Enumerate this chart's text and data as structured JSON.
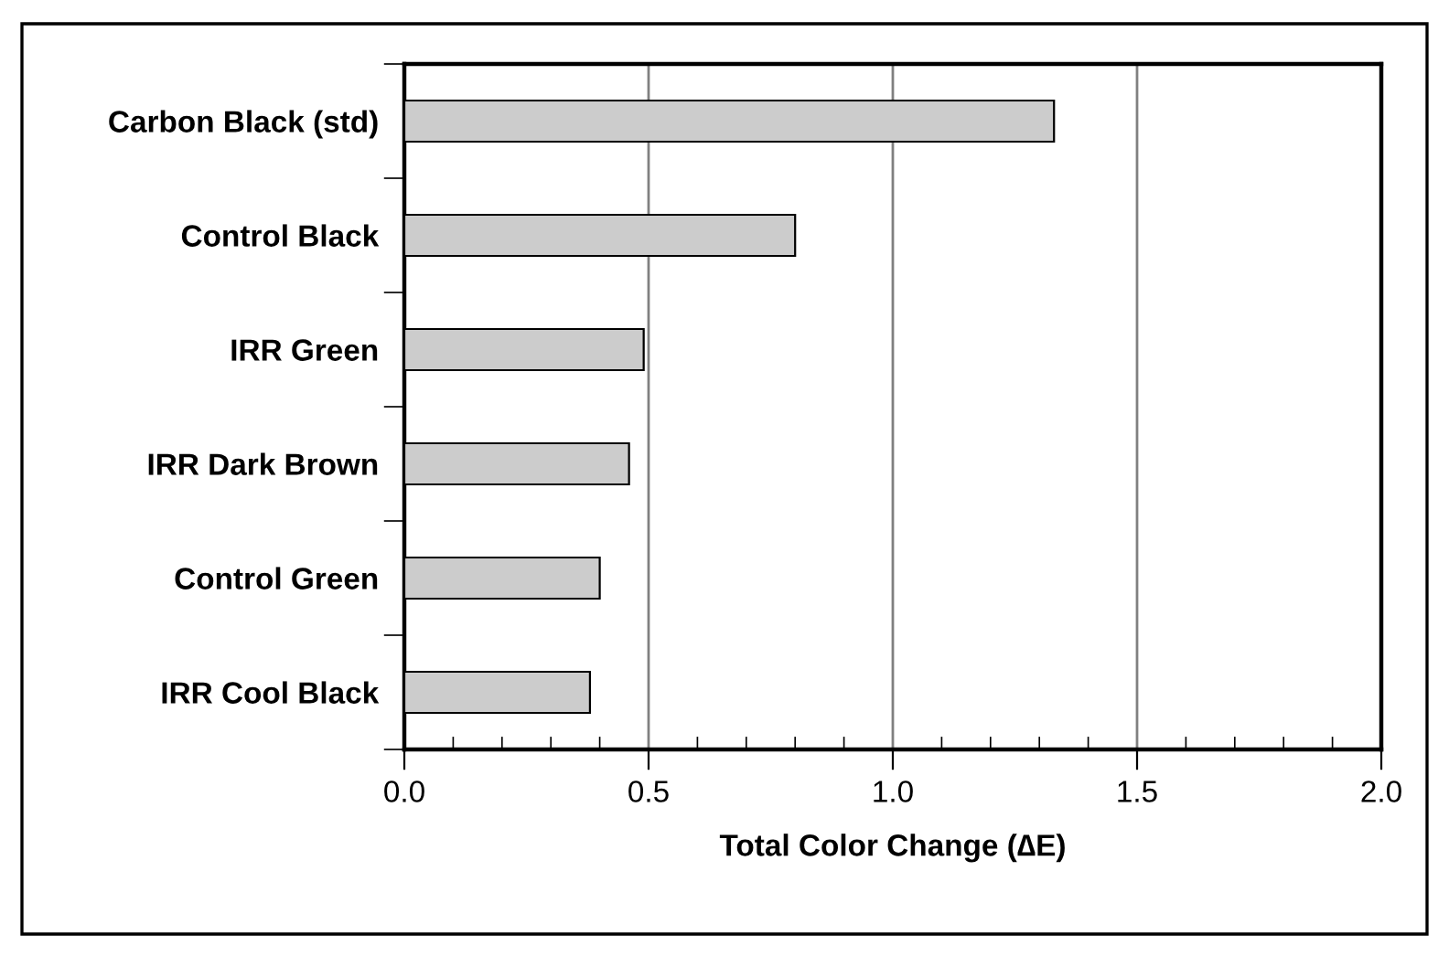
{
  "chart_data": {
    "type": "bar",
    "orientation": "horizontal",
    "xlabel": "Total Color Change (∆E)",
    "categories": [
      "Carbon Black (std)",
      "Control Black",
      "IRR Green",
      "IRR Dark Brown",
      "Control Green",
      "IRR Cool Black"
    ],
    "values": [
      1.33,
      0.8,
      0.49,
      0.46,
      0.4,
      0.38
    ],
    "color": "#cccccc",
    "xlim": [
      0,
      2.0
    ],
    "xticks": [
      {
        "value": 0,
        "label": "0.0"
      },
      {
        "value": 0.1,
        "label": null
      },
      {
        "value": 0.2,
        "label": null
      },
      {
        "value": 0.3,
        "label": null
      },
      {
        "value": 0.4,
        "label": null
      },
      0.5,
      {
        "value": 0.6,
        "label": null
      },
      {
        "value": 0.7,
        "label": null
      },
      {
        "value": 0.8,
        "label": null
      },
      {
        "value": 0.9,
        "label": null
      },
      {
        "value": 1,
        "label": "1.0"
      },
      {
        "value": 1.1,
        "label": null
      },
      {
        "value": 1.2,
        "label": null
      },
      {
        "value": 1.3,
        "label": null
      },
      {
        "value": 1.4,
        "label": null
      },
      1.5,
      {
        "value": 1.6,
        "label": null
      },
      {
        "value": 1.7,
        "label": null
      },
      {
        "value": 1.8,
        "label": null
      },
      {
        "value": 1.9,
        "label": null
      },
      {
        "value": 2,
        "label": "2.0"
      }
    ],
    "grid": "x"
  }
}
